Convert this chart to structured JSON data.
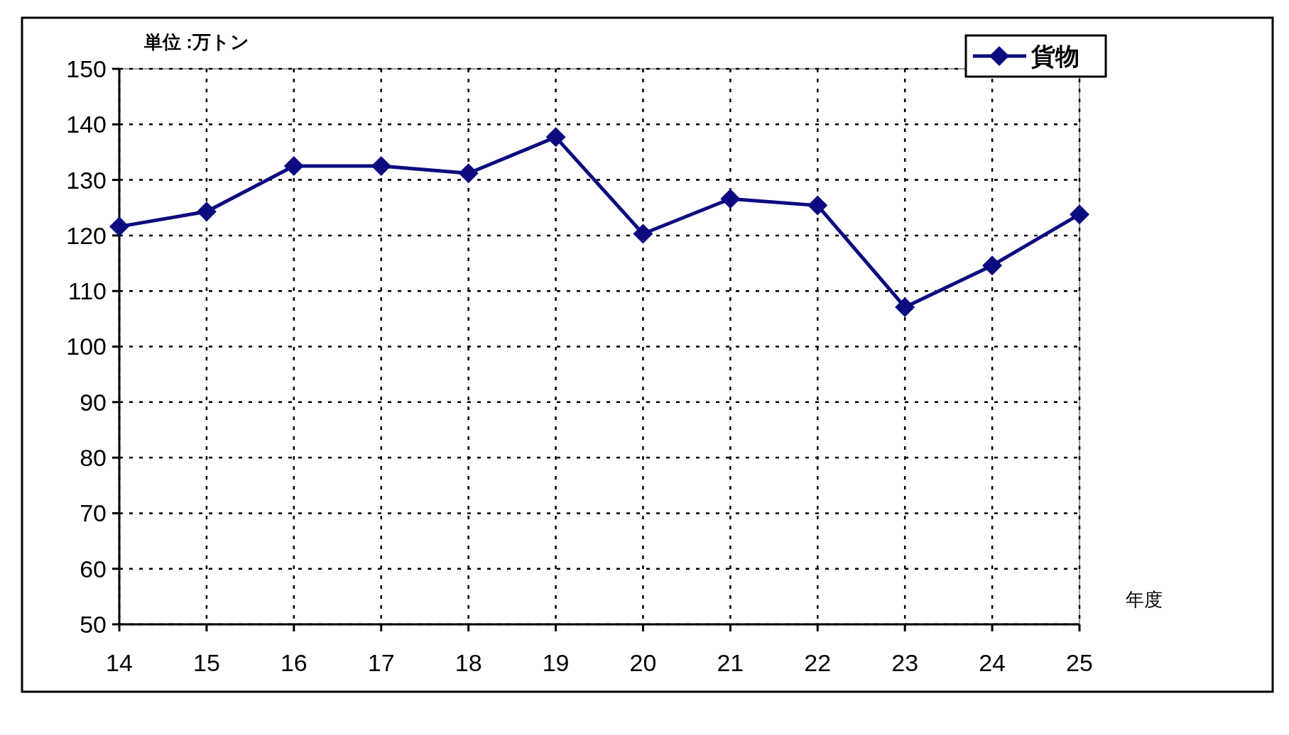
{
  "chart_data": {
    "type": "line",
    "xlabel": "年度",
    "ylabel": "単位 :万トン",
    "x": [
      14,
      15,
      16,
      17,
      18,
      19,
      20,
      21,
      22,
      23,
      24,
      25
    ],
    "series": [
      {
        "name": "貨物",
        "color": "#0c0c80",
        "values": [
          121.6,
          124.3,
          132.5,
          132.5,
          131.2,
          137.7,
          120.3,
          126.6,
          125.4,
          107.1,
          114.6,
          123.8
        ]
      }
    ],
    "xlim": [
      14,
      25
    ],
    "xticks": [
      14,
      15,
      16,
      17,
      18,
      19,
      20,
      21,
      22,
      23,
      24,
      25
    ],
    "ylim": [
      50,
      150
    ],
    "yticks": [
      50,
      60,
      70,
      80,
      90,
      100,
      110,
      120,
      130,
      140,
      150
    ],
    "grid": true,
    "legend": "top right",
    "marker": "diamond",
    "line_style": "solid"
  }
}
